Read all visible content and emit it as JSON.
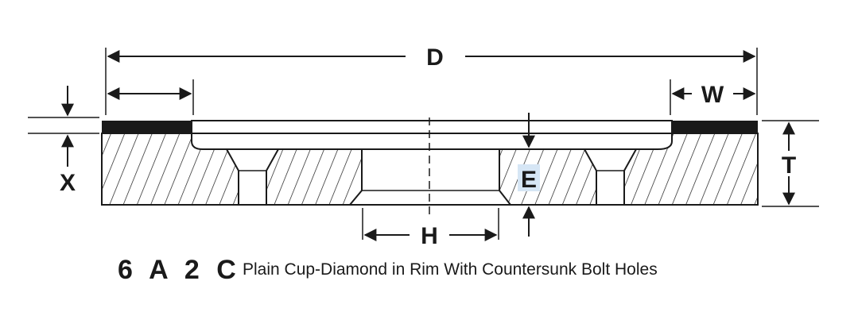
{
  "labels": {
    "D": "D",
    "W": "W",
    "T": "T",
    "X": "X",
    "E": "E",
    "H": "H"
  },
  "caption": {
    "code": "6 A 2 C",
    "description": "Plain Cup-Diamond in Rim With Countersunk Bolt Holes"
  },
  "colors": {
    "line": "#1a1a1a",
    "rim": "#1a1a1a",
    "highlight_E": "#d6e6f5"
  }
}
